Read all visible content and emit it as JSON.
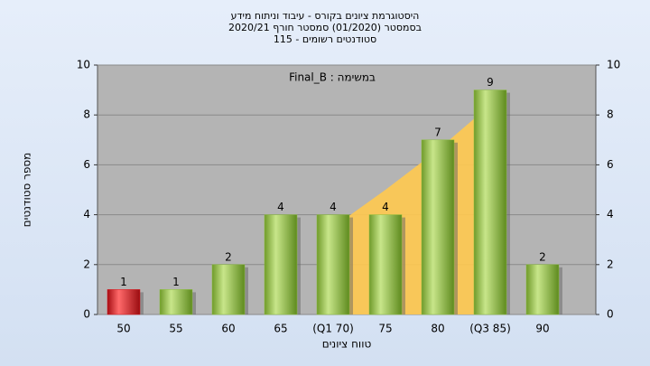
{
  "chart_data": {
    "type": "bar",
    "title": [
      "היסטוגרמת ציונים בקורס - עיבוד וניתוח מידע",
      "בסמסטר  (01/2020)  סמסטר חורף  2020/21",
      "סטודנטים רשומים - 115"
    ],
    "annotation": "Final_B : במשימה",
    "xlabel": "טווח ציונים",
    "ylabel": "מספר סטודנטים",
    "categories": [
      "50",
      "55",
      "60",
      "65",
      "(Q1 70)",
      "75",
      "80",
      "(Q3 85)",
      "90"
    ],
    "values": [
      1,
      1,
      2,
      4,
      4,
      4,
      7,
      9,
      2
    ],
    "colors": [
      "#d8141c",
      "#8cbf3c",
      "#8cbf3c",
      "#8cbf3c",
      "#8cbf3c",
      "#8cbf3c",
      "#8cbf3c",
      "#8cbf3c",
      "#8cbf3c"
    ],
    "band_values": [
      null,
      null,
      null,
      null,
      3.5,
      5,
      6.6,
      8.4,
      null
    ],
    "band_color": "#ffc94f",
    "ylim": [
      0,
      10
    ],
    "yticks": [
      0,
      2,
      4,
      6,
      8,
      10
    ],
    "y2lim": [
      0,
      10
    ],
    "y2ticks": [
      0,
      2,
      4,
      6,
      8,
      10
    ],
    "grid": true
  }
}
